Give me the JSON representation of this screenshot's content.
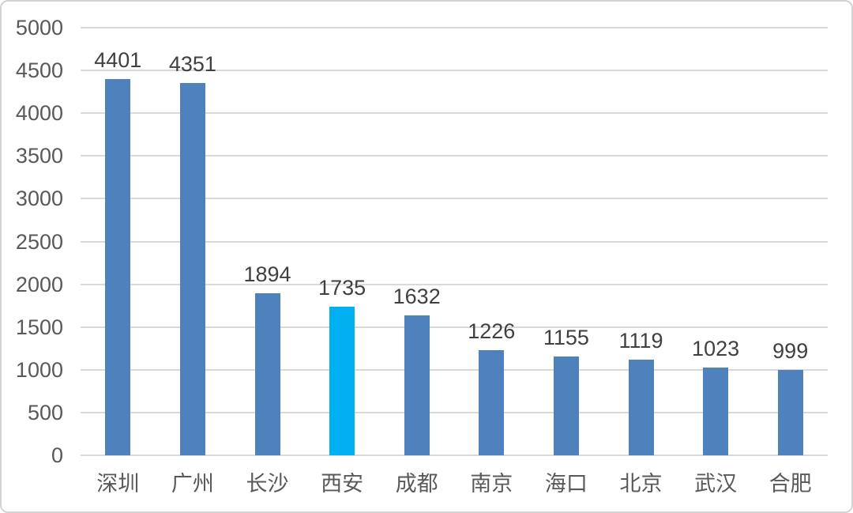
{
  "chart_data": {
    "type": "bar",
    "title": "",
    "xlabel": "",
    "ylabel": "",
    "categories": [
      "深圳",
      "广州",
      "长沙",
      "西安",
      "成都",
      "南京",
      "海口",
      "北京",
      "武汉",
      "合肥"
    ],
    "values": [
      4401,
      4351,
      1894,
      1735,
      1632,
      1226,
      1155,
      1119,
      1023,
      999
    ],
    "data_labels": [
      "4401",
      "4351",
      "1894",
      "1735",
      "1632",
      "1226",
      "1155",
      "1119",
      "1023",
      "999"
    ],
    "ylim": [
      0,
      5000
    ],
    "ytick_step": 500,
    "yticks": [
      "0",
      "500",
      "1000",
      "1500",
      "2000",
      "2500",
      "3000",
      "3500",
      "4000",
      "4500",
      "5000"
    ],
    "grid": true,
    "legend": false,
    "highlight_category": "西安",
    "highlight_index": 3,
    "colors": {
      "bar": "#4F81BD",
      "highlight_bar": "#00B0F0",
      "gridline": "#D9D9D9",
      "axis_line": "#D9D9D9",
      "tick_label": "#595959",
      "data_label": "#404040",
      "category_label": "#595959",
      "background": "#FFFFFF",
      "border": "#D3D3D3"
    }
  }
}
